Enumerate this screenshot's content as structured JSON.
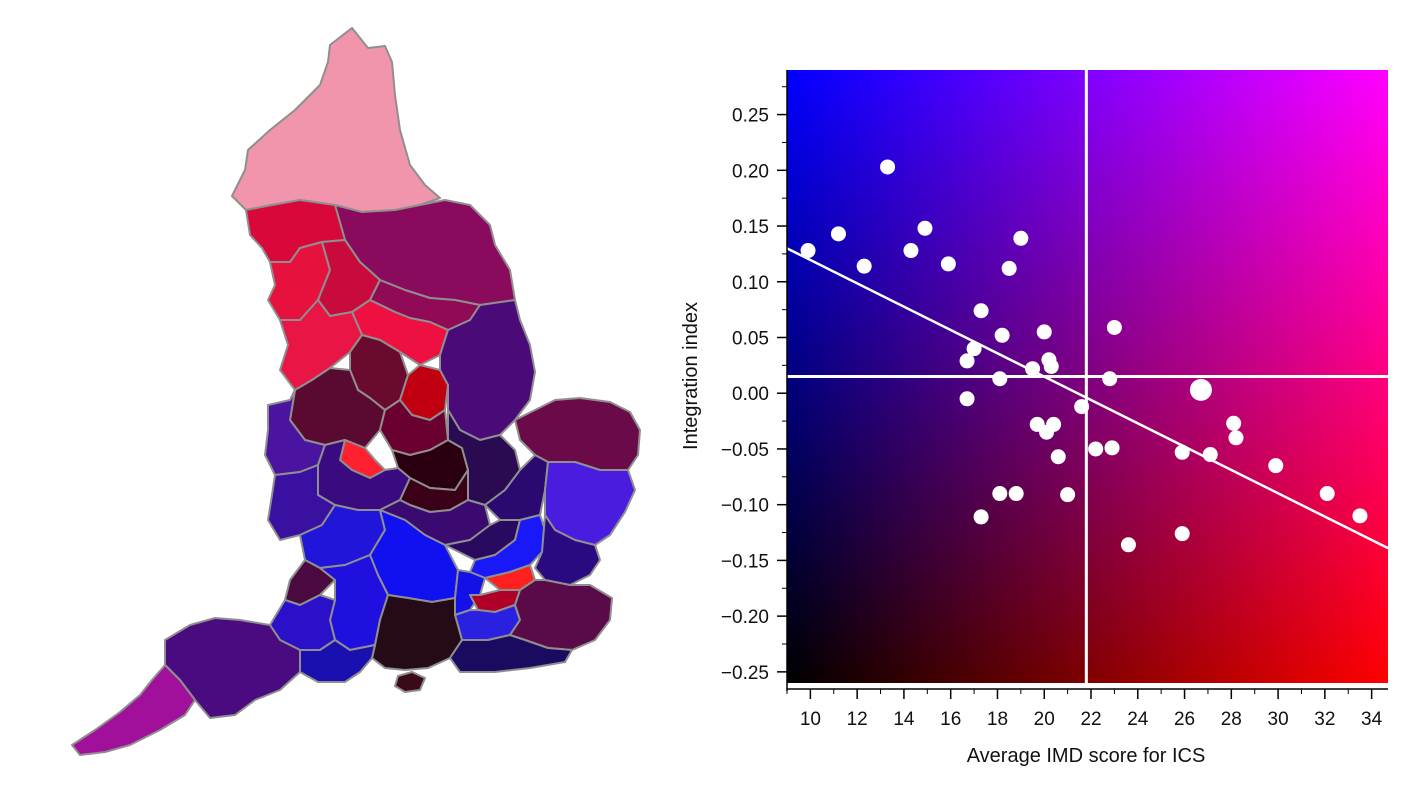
{
  "map": {
    "regions": [
      {
        "name": "north-cumbria",
        "color": "#f095ac"
      },
      {
        "name": "north-east-coast",
        "color": "#8a0a5e"
      },
      {
        "name": "lancashire-north",
        "color": "#d8083a"
      },
      {
        "name": "lancashire-central",
        "color": "#e6123d"
      },
      {
        "name": "yorkshire-dales",
        "color": "#c80a3c"
      },
      {
        "name": "east-yorkshire",
        "color": "#900a55"
      },
      {
        "name": "west-yorkshire",
        "color": "#ee1040"
      },
      {
        "name": "merseyside",
        "color": "#e81545"
      },
      {
        "name": "greater-manchester",
        "color": "#6a0a2e"
      },
      {
        "name": "south-yorkshire",
        "color": "#c00010"
      },
      {
        "name": "lincolnshire",
        "color": "#4a0a78"
      },
      {
        "name": "cheshire",
        "color": "#5a0a30"
      },
      {
        "name": "staffordshire-north",
        "color": "#6a0030"
      },
      {
        "name": "derbyshire",
        "color": "#2a0010"
      },
      {
        "name": "nottinghamshire",
        "color": "#2a0a50"
      },
      {
        "name": "norfolk",
        "color": "#6a0a48"
      },
      {
        "name": "wales-border",
        "color": "#4a14a0"
      },
      {
        "name": "black-country",
        "color": "#ff2030"
      },
      {
        "name": "birmingham",
        "color": "#3a0a80"
      },
      {
        "name": "leicestershire",
        "color": "#3a0018"
      },
      {
        "name": "cambridgeshire",
        "color": "#2a0a70"
      },
      {
        "name": "suffolk",
        "color": "#4a1ce0"
      },
      {
        "name": "herefordshire",
        "color": "#3a10a0"
      },
      {
        "name": "coventry",
        "color": "#3a0a70"
      },
      {
        "name": "northamptonshire",
        "color": "#2a0a60"
      },
      {
        "name": "gloucestershire",
        "color": "#2015d8"
      },
      {
        "name": "oxfordshire",
        "color": "#1010f0"
      },
      {
        "name": "bedfordshire",
        "color": "#1818f8"
      },
      {
        "name": "essex",
        "color": "#2a0a80"
      },
      {
        "name": "bristol",
        "color": "#4a0a40"
      },
      {
        "name": "wiltshire",
        "color": "#2010e0"
      },
      {
        "name": "berkshire",
        "color": "#1410e8"
      },
      {
        "name": "london-north",
        "color": "#ff2020"
      },
      {
        "name": "london-south",
        "color": "#b0002a"
      },
      {
        "name": "surrey",
        "color": "#2a20e0"
      },
      {
        "name": "kent",
        "color": "#5a0a48"
      },
      {
        "name": "somerset",
        "color": "#2a10c8"
      },
      {
        "name": "hampshire",
        "color": "#250a18"
      },
      {
        "name": "sussex",
        "color": "#1a0a60"
      },
      {
        "name": "dorset",
        "color": "#1a10b0"
      },
      {
        "name": "devon",
        "color": "#4a0a80"
      },
      {
        "name": "cornwall",
        "color": "#a0109a"
      },
      {
        "name": "isle-of-wight",
        "color": "#3a0a18"
      }
    ]
  },
  "chart_data": {
    "type": "scatter",
    "title": "",
    "xlabel": "Average IMD score for ICS",
    "ylabel": "Integration index",
    "xlim": [
      9.0,
      34.7
    ],
    "ylim": [
      -0.26,
      0.29
    ],
    "x_ticks": [
      "10",
      "12",
      "14",
      "16",
      "18",
      "20",
      "22",
      "24",
      "26",
      "28",
      "30",
      "32",
      "34"
    ],
    "y_ticks": [
      "0.25",
      "0.20",
      "0.15",
      "0.10",
      "0.05",
      "0.00",
      "−0.05",
      "−0.10",
      "−0.15",
      "−0.20",
      "−0.25"
    ],
    "grid": false,
    "background_gradient": {
      "top_left": "#0000ff",
      "top_right": "#ff00ff",
      "bottom_left": "#000000",
      "bottom_right": "#ff0000"
    },
    "reference_lines": {
      "mean_x": 21.8,
      "mean_y": 0.015
    },
    "trend_line": {
      "x": [
        9.0,
        34.7
      ],
      "y": [
        0.13,
        -0.139
      ]
    },
    "points": [
      {
        "x": 9.9,
        "y": 0.128
      },
      {
        "x": 11.2,
        "y": 0.143
      },
      {
        "x": 12.3,
        "y": 0.114
      },
      {
        "x": 13.3,
        "y": 0.203
      },
      {
        "x": 14.3,
        "y": 0.128
      },
      {
        "x": 14.9,
        "y": 0.148
      },
      {
        "x": 15.9,
        "y": 0.116
      },
      {
        "x": 16.7,
        "y": 0.029
      },
      {
        "x": 16.7,
        "y": -0.005
      },
      {
        "x": 17.0,
        "y": 0.04
      },
      {
        "x": 17.3,
        "y": 0.074
      },
      {
        "x": 17.3,
        "y": -0.111
      },
      {
        "x": 18.1,
        "y": 0.013
      },
      {
        "x": 18.1,
        "y": -0.09
      },
      {
        "x": 18.2,
        "y": 0.052
      },
      {
        "x": 18.5,
        "y": 0.112
      },
      {
        "x": 18.8,
        "y": -0.09
      },
      {
        "x": 19.0,
        "y": 0.139
      },
      {
        "x": 19.5,
        "y": 0.022
      },
      {
        "x": 19.7,
        "y": -0.028
      },
      {
        "x": 20.0,
        "y": 0.055
      },
      {
        "x": 20.1,
        "y": -0.035
      },
      {
        "x": 20.2,
        "y": 0.03
      },
      {
        "x": 20.3,
        "y": 0.024
      },
      {
        "x": 20.4,
        "y": -0.028
      },
      {
        "x": 20.6,
        "y": -0.057
      },
      {
        "x": 21.0,
        "y": -0.091
      },
      {
        "x": 21.6,
        "y": -0.012
      },
      {
        "x": 22.2,
        "y": -0.05
      },
      {
        "x": 22.8,
        "y": 0.013
      },
      {
        "x": 22.9,
        "y": -0.049
      },
      {
        "x": 23.0,
        "y": 0.059
      },
      {
        "x": 23.6,
        "y": -0.136
      },
      {
        "x": 25.9,
        "y": -0.053
      },
      {
        "x": 25.9,
        "y": -0.126
      },
      {
        "x": 26.7,
        "y": 0.003,
        "big": true
      },
      {
        "x": 27.1,
        "y": -0.055
      },
      {
        "x": 28.1,
        "y": -0.027
      },
      {
        "x": 28.2,
        "y": -0.04
      },
      {
        "x": 29.9,
        "y": -0.065
      },
      {
        "x": 32.1,
        "y": -0.09
      },
      {
        "x": 33.5,
        "y": -0.11
      }
    ]
  }
}
